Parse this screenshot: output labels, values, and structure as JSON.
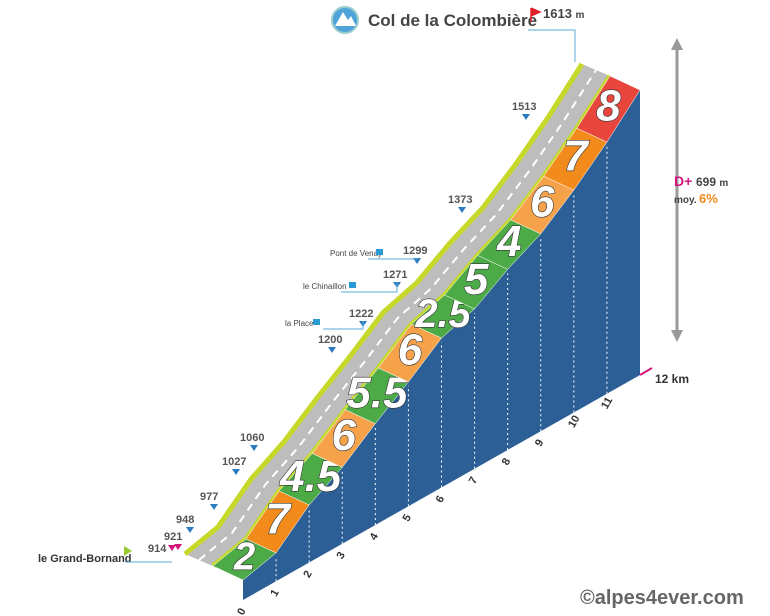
{
  "header": {
    "title": "Col de la Colombière",
    "summit_altitude": "1613",
    "summit_unit": "m"
  },
  "start": {
    "name": "le Grand-Bornand",
    "altitude": "914"
  },
  "altitudes": [
    "921",
    "948",
    "977",
    "1027",
    "1060",
    "1200",
    "1222",
    "1271",
    "1299",
    "1373",
    "1513"
  ],
  "places": [
    "la Place",
    "le Chinaillon",
    "Pont de Venay"
  ],
  "gradients": [
    "2",
    "7",
    "4.5",
    "6",
    "5.5",
    "6",
    "2.5",
    "5",
    "4",
    "6",
    "7",
    "8"
  ],
  "km_labels": [
    "0",
    "1",
    "2",
    "3",
    "4",
    "5",
    "6",
    "7",
    "8",
    "9",
    "10",
    "11"
  ],
  "length": "12 km",
  "stats": {
    "gain_label": "D+",
    "gain": "699",
    "gain_unit": "m",
    "avg_label": "moy.",
    "avg": "6%"
  },
  "credit": "©alpes4ever.com"
}
